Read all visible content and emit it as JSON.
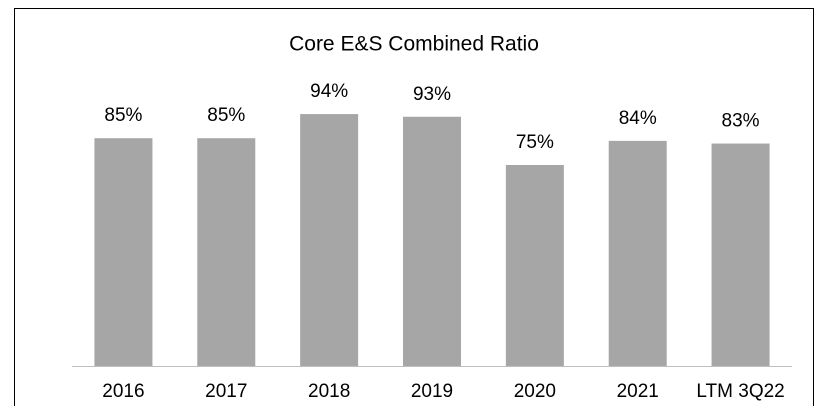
{
  "chart_data": {
    "type": "bar",
    "title": "Core E&S Combined Ratio",
    "categories": [
      "2016",
      "2017",
      "2018",
      "2019",
      "2020",
      "2021",
      "LTM 3Q22"
    ],
    "values": [
      85,
      85,
      94,
      93,
      75,
      84,
      83
    ],
    "value_labels": [
      "85%",
      "85%",
      "94%",
      "93%",
      "75%",
      "84%",
      "83%"
    ],
    "color": "#a6a6a6"
  }
}
